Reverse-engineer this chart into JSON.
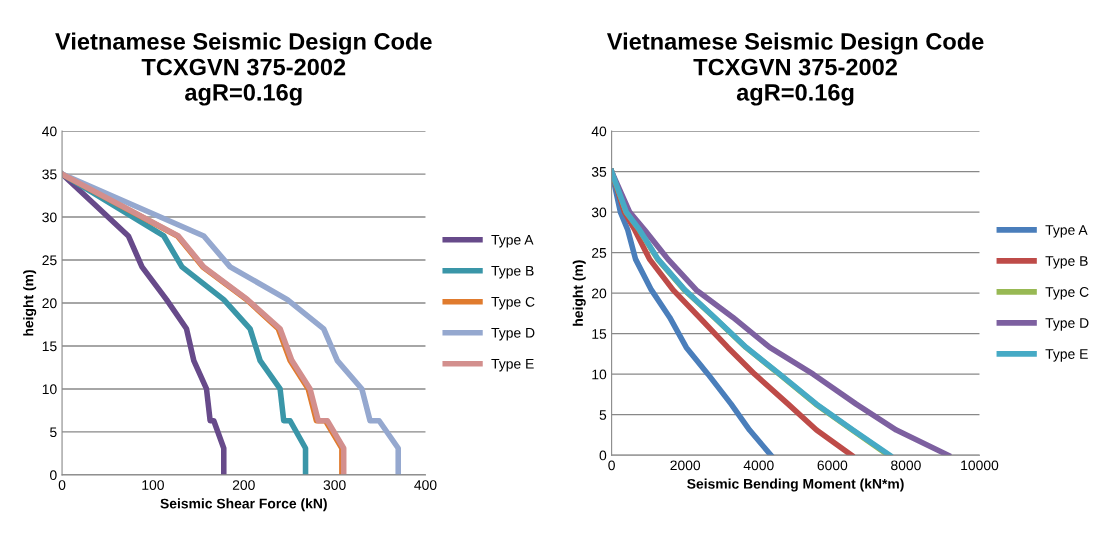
{
  "chart_data": [
    {
      "type": "line",
      "title": "Vietnamese Seismic Design Code\nTCXGVN 375-2002\nagR=0.16g",
      "xlabel": "Seismic Shear Force (kN)",
      "ylabel": "height (m)",
      "xlim": [
        0,
        400
      ],
      "xticks": [
        0,
        100,
        200,
        300,
        400
      ],
      "ylim": [
        0,
        40
      ],
      "yticks": [
        0,
        5,
        10,
        15,
        20,
        25,
        30,
        35,
        40
      ],
      "grid": "y",
      "legend": "right",
      "marker": "none",
      "line_style": "solid",
      "series": [
        {
          "name": "Type A",
          "color": "#674a8a",
          "x": [
            0,
            73,
            88,
            115,
            137,
            145,
            159,
            163,
            167,
            178,
            178
          ],
          "values": [
            35,
            27.8,
            24.2,
            20.4,
            17,
            13.3,
            10,
            6.3,
            6.3,
            3.1,
            0
          ]
        },
        {
          "name": "Type B",
          "color": "#3a96a8",
          "x": [
            0,
            112,
            132,
            178,
            207,
            218,
            240,
            244,
            251,
            268,
            268
          ],
          "values": [
            35,
            27.8,
            24.2,
            20.4,
            17,
            13.3,
            10,
            6.3,
            6.3,
            3.1,
            0
          ]
        },
        {
          "name": "Type C",
          "color": "#e07b2e",
          "x": [
            0,
            127,
            155,
            203,
            238,
            251,
            271,
            280,
            290,
            308,
            308
          ],
          "values": [
            35,
            27.8,
            24.2,
            20.4,
            17,
            13.3,
            10,
            6.3,
            6.3,
            3.1,
            0
          ]
        },
        {
          "name": "Type D",
          "color": "#95a8cf",
          "x": [
            0,
            156,
            185,
            248,
            288,
            303,
            330,
            339,
            349,
            370,
            370
          ],
          "values": [
            35,
            27.8,
            24.2,
            20.4,
            17,
            13.3,
            10,
            6.3,
            6.3,
            3.1,
            0
          ]
        },
        {
          "name": "Type E",
          "color": "#d38f8d",
          "x": [
            0,
            128,
            156,
            204,
            240,
            253,
            273,
            282,
            292,
            310,
            310
          ],
          "values": [
            35,
            27.8,
            24.2,
            20.4,
            17,
            13.3,
            10,
            6.3,
            6.3,
            3.1,
            0
          ]
        }
      ]
    },
    {
      "type": "line",
      "title": "Vietnamese Seismic Design Code\nTCXGVN 375-2002\nagR=0.16g",
      "xlabel": "Seismic Bending Moment (kN*m)",
      "ylabel": "height (m)",
      "xlim": [
        0,
        10000
      ],
      "xticks": [
        0,
        2000,
        4000,
        6000,
        8000,
        10000
      ],
      "ylim": [
        0,
        40
      ],
      "yticks": [
        0,
        5,
        10,
        15,
        20,
        25,
        30,
        35,
        40
      ],
      "grid": "y",
      "legend": "right",
      "marker": "none",
      "line_style": "solid",
      "series": [
        {
          "name": "Type A",
          "color": "#4a7ebb",
          "x": [
            0,
            240,
            440,
            650,
            1080,
            1580,
            2030,
            2620,
            3250,
            3750,
            4330
          ],
          "values": [
            35,
            30,
            27.8,
            24.2,
            20.4,
            17,
            13.3,
            10,
            6.3,
            3.1,
            0
          ]
        },
        {
          "name": "Type B",
          "color": "#be4b48",
          "x": [
            0,
            350,
            630,
            1030,
            1670,
            2390,
            3160,
            3890,
            4800,
            5570,
            6520
          ],
          "values": [
            35,
            30,
            27.8,
            24.2,
            20.4,
            17,
            13.3,
            10,
            6.3,
            3.1,
            0
          ]
        },
        {
          "name": "Type C",
          "color": "#98b954",
          "x": [
            0,
            395,
            755,
            1250,
            1975,
            2790,
            3650,
            4555,
            5550,
            6540,
            7520
          ],
          "values": [
            35,
            30,
            27.8,
            24.2,
            20.4,
            17,
            13.3,
            10,
            6.3,
            3.1,
            0
          ]
        },
        {
          "name": "Type D",
          "color": "#7d60a0",
          "x": [
            0,
            490,
            900,
            1530,
            2300,
            3300,
            4300,
            5480,
            6650,
            7740,
            9150
          ],
          "values": [
            35,
            30,
            27.8,
            24.2,
            20.4,
            17,
            13.3,
            10,
            6.3,
            3.1,
            0
          ]
        },
        {
          "name": "Type E",
          "color": "#46aac5",
          "x": [
            0,
            400,
            760,
            1260,
            1990,
            2800,
            3660,
            4570,
            5570,
            6560,
            7560
          ],
          "values": [
            35,
            30,
            27.8,
            24.2,
            20.4,
            17,
            13.3,
            10,
            6.3,
            3.1,
            0
          ]
        }
      ]
    }
  ]
}
